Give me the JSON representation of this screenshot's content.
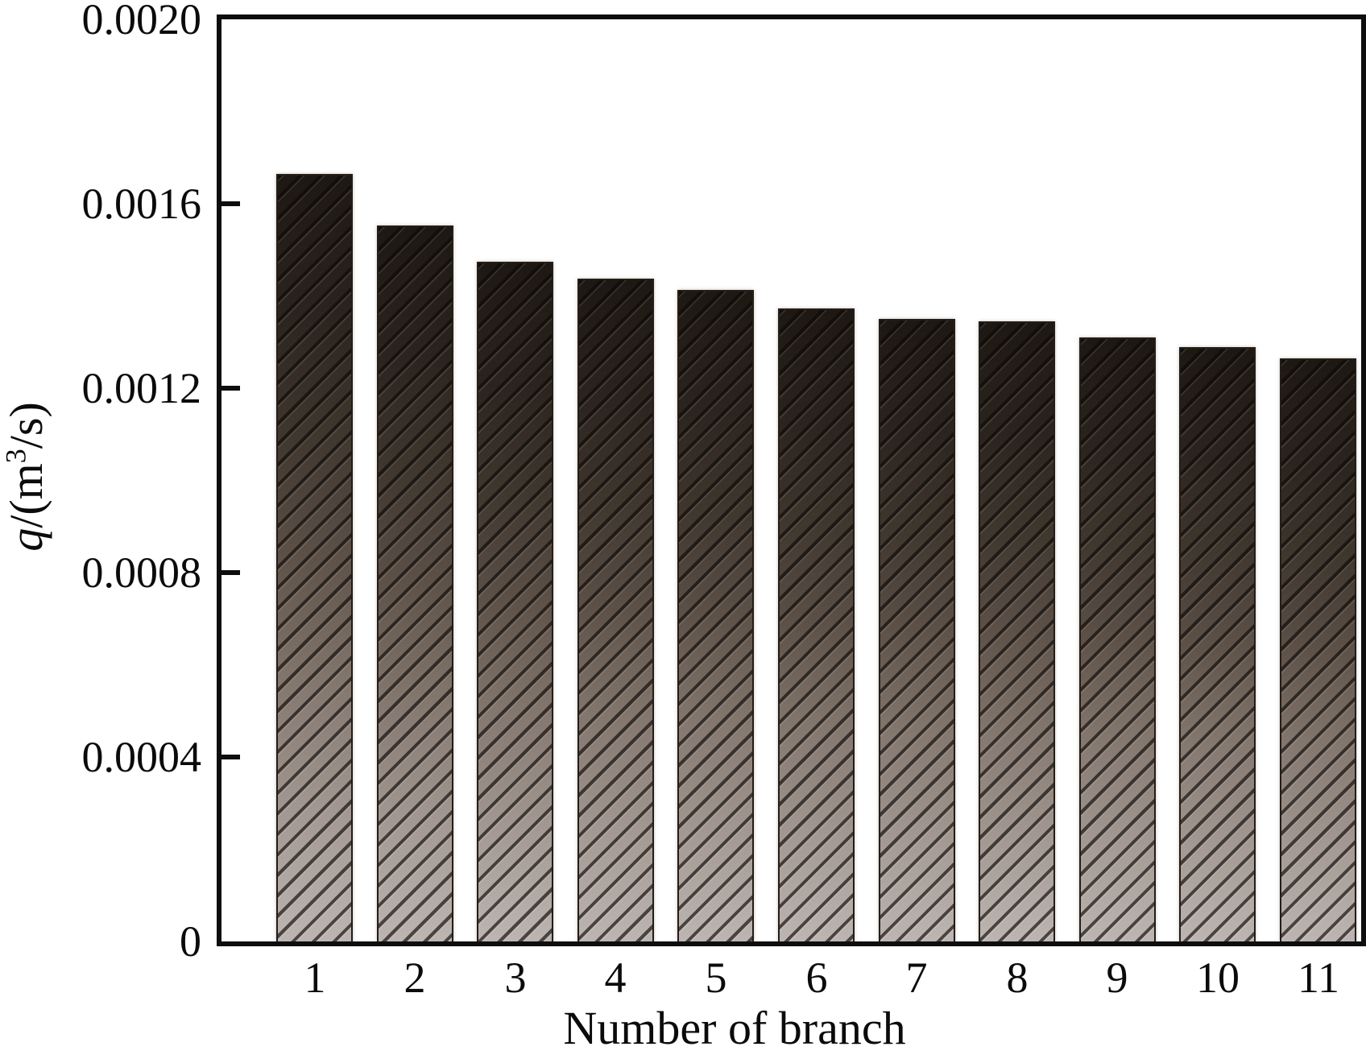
{
  "chart_data": {
    "type": "bar",
    "title": "",
    "xlabel": "Number of branch",
    "ylabel": "q/(m³/s)",
    "ylabel_parts": {
      "q": "q",
      "open": "/(m",
      "sup": "3",
      "close": "/s)"
    },
    "categories": [
      "1",
      "2",
      "3",
      "4",
      "5",
      "6",
      "7",
      "8",
      "9",
      "10",
      "11"
    ],
    "values": [
      0.001665,
      0.001552,
      0.001475,
      0.001437,
      0.001413,
      0.001373,
      0.00135,
      0.001345,
      0.00131,
      0.001289,
      0.001265
    ],
    "ylim": [
      0,
      0.002
    ],
    "yticks": [
      {
        "value": 0.0,
        "label": "0"
      },
      {
        "value": 0.0004,
        "label": "0.0004"
      },
      {
        "value": 0.0008,
        "label": "0.0008"
      },
      {
        "value": 0.0012,
        "label": "0.0012"
      },
      {
        "value": 0.0016,
        "label": "0.0016"
      },
      {
        "value": 0.002,
        "label": "0.0020"
      }
    ],
    "grid": false,
    "legend": null,
    "bar_style": {
      "gradient_top": "#1e1813",
      "gradient_bottom": "#bdb5b1",
      "hatch": "forward-diagonal",
      "border": "#241d18"
    }
  }
}
